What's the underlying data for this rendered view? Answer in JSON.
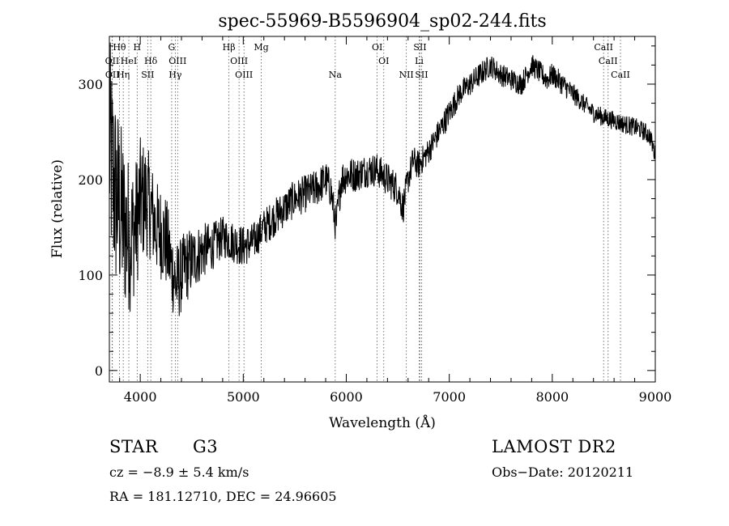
{
  "chart_data": {
    "type": "line",
    "title": "spec-55969-B5596904_sp02-244.fits",
    "xlabel": "Wavelength (Å)",
    "ylabel": "Flux (relative)",
    "xlim": [
      3700,
      9000
    ],
    "ylim": [
      -12,
      350
    ],
    "xticks": [
      4000,
      5000,
      6000,
      7000,
      8000,
      9000
    ],
    "yticks": [
      0,
      100,
      200,
      300
    ],
    "xtick_labels": [
      "4000",
      "5000",
      "6000",
      "7000",
      "8000",
      "9000"
    ],
    "ytick_labels": [
      "0",
      "100",
      "200",
      "300"
    ],
    "grid": false,
    "line_color": "#000000",
    "series": [
      {
        "x": [
          3700,
          3750,
          3800,
          3850,
          3900,
          3950,
          4000,
          4050,
          4100,
          4150,
          4200,
          4250,
          4300,
          4350,
          4400,
          4450,
          4500,
          4600,
          4700,
          4800,
          4900,
          5000,
          5100,
          5200,
          5300,
          5400,
          5500,
          5600,
          5700,
          5800,
          5850,
          5900,
          5950,
          6000,
          6100,
          6200,
          6300,
          6400,
          6500,
          6550,
          6600,
          6650,
          6700,
          6800,
          6900,
          7000,
          7100,
          7200,
          7300,
          7400,
          7500,
          7600,
          7700,
          7800,
          7850,
          7900,
          7950,
          8000,
          8100,
          8200,
          8300,
          8400,
          8500,
          8600,
          8700,
          8800,
          8900,
          8950,
          9000
        ],
        "y": [
          235,
          190,
          170,
          150,
          140,
          150,
          175,
          180,
          170,
          150,
          145,
          135,
          110,
          90,
          100,
          110,
          115,
          125,
          130,
          140,
          135,
          130,
          135,
          150,
          160,
          170,
          180,
          185,
          190,
          200,
          190,
          150,
          200,
          205,
          205,
          210,
          210,
          200,
          190,
          170,
          200,
          220,
          215,
          230,
          250,
          270,
          290,
          300,
          310,
          320,
          310,
          305,
          300,
          320,
          315,
          310,
          305,
          310,
          300,
          290,
          280,
          270,
          265,
          262,
          258,
          255,
          250,
          245,
          225
        ],
        "noise": [
          120,
          110,
          100,
          90,
          80,
          70,
          70,
          60,
          55,
          50,
          50,
          50,
          45,
          45,
          40,
          40,
          35,
          30,
          25,
          22,
          22,
          22,
          20,
          20,
          20,
          20,
          20,
          20,
          20,
          20,
          20,
          20,
          20,
          20,
          18,
          18,
          18,
          18,
          18,
          18,
          16,
          16,
          15,
          14,
          14,
          14,
          13,
          13,
          13,
          12,
          12,
          12,
          12,
          12,
          12,
          12,
          12,
          12,
          12,
          11,
          10,
          10,
          10,
          10,
          10,
          10,
          10,
          10,
          10
        ]
      }
    ],
    "annotations": {
      "lines": [
        {
          "label": "Hθ",
          "x": 3798,
          "row": 0
        },
        {
          "label": "H",
          "x": 3970,
          "row": 0
        },
        {
          "label": "G",
          "x": 4305,
          "row": 0
        },
        {
          "label": "Hβ",
          "x": 4861,
          "row": 0
        },
        {
          "label": "Mg",
          "x": 5175,
          "row": 0
        },
        {
          "label": "OI",
          "x": 6300,
          "row": 0
        },
        {
          "label": "SII",
          "x": 6716,
          "row": 0
        },
        {
          "label": "CaII",
          "x": 8498,
          "row": 0
        },
        {
          "label": "OII",
          "x": 3727,
          "row": 1
        },
        {
          "label": "HeI",
          "x": 3889,
          "row": 1
        },
        {
          "label": "Hδ",
          "x": 4102,
          "row": 1
        },
        {
          "label": "OIII",
          "x": 4363,
          "row": 1
        },
        {
          "label": "OIII",
          "x": 4959,
          "row": 1
        },
        {
          "label": "OI",
          "x": 6364,
          "row": 1
        },
        {
          "label": "Li",
          "x": 6708,
          "row": 1
        },
        {
          "label": "CaII",
          "x": 8542,
          "row": 1
        },
        {
          "label": "OII",
          "x": 3729,
          "row": 2
        },
        {
          "label": "Hη",
          "x": 3835,
          "row": 2
        },
        {
          "label": "SII",
          "x": 4072,
          "row": 2
        },
        {
          "label": "Hγ",
          "x": 4340,
          "row": 2
        },
        {
          "label": "OIII",
          "x": 5007,
          "row": 2
        },
        {
          "label": "Na",
          "x": 5893,
          "row": 2
        },
        {
          "label": "NII",
          "x": 6583,
          "row": 2
        },
        {
          "label": "SII",
          "x": 6731,
          "row": 2
        },
        {
          "label": "CaII",
          "x": 8662,
          "row": 2
        }
      ]
    }
  },
  "footer": {
    "object_type": "STAR",
    "subclass": "G3",
    "redshift": "cz = −8.9 ± 5.4 km/s",
    "coords": "RA = 181.12710, DEC =  24.96605",
    "survey": "LAMOST DR2",
    "obs_date": "Obs−Date: 20120211"
  }
}
